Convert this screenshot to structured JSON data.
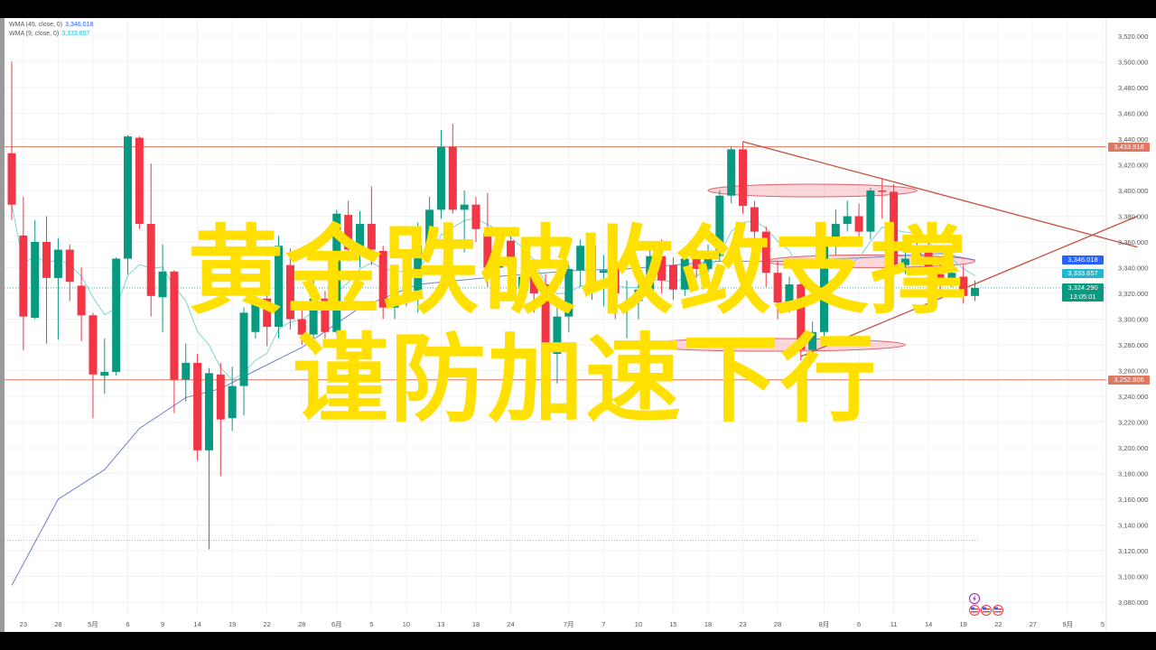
{
  "legend": [
    {
      "label": "WMA (45, close, 0)",
      "value": "3,346.018"
    },
    {
      "label": "WMA (9, close, 0)",
      "value": "3,333.657"
    }
  ],
  "overlay": {
    "line1": "黄金跌破收敛支撑",
    "line2": "谨防加速下行"
  },
  "price_labels": {
    "resistance": "3,433.918",
    "wma45": "3,346.018",
    "wma9": "3,333.657",
    "last_price": "3,324.290",
    "countdown": "13:05:01",
    "support": "3,252.806"
  },
  "colors": {
    "up": "#089981",
    "down": "#f23645",
    "wma45": "#6f7fd8",
    "wma9": "#7fd6cf",
    "level_line": "#e0775f",
    "trend_line": "#c8503c",
    "overlay_text": "#ffe000",
    "wma45_label": "#2962ff",
    "wma9_label": "#22b8cf"
  },
  "events": {
    "icons": [
      "lightning-icon",
      "us-flag-icon",
      "us-flag-icon",
      "us-flag-icon"
    ]
  },
  "chart_data": {
    "type": "candlestick",
    "ylim": [
      3070,
      3530
    ],
    "grid": true,
    "y_ticks": [
      3080,
      3100,
      3120,
      3140,
      3160,
      3180,
      3200,
      3220,
      3240,
      3260,
      3280,
      3300,
      3320,
      3340,
      3360,
      3380,
      3400,
      3420,
      3440,
      3460,
      3480,
      3500,
      3520
    ],
    "y_tick_labels": [
      "3,080.000",
      "3,100.000",
      "3,120.000",
      "3,140.000",
      "3,160.000",
      "3,180.000",
      "3,200.000",
      "3,220.000",
      "3,240.000",
      "3,260.000",
      "3,280.000",
      "3,300.000",
      "3,320.000",
      "3,340.000",
      "3,360.000",
      "3,380.000",
      "3,400.000",
      "3,420.000",
      "3,440.000",
      "3,460.000",
      "3,480.000",
      "3,500.000",
      "3,520.000"
    ],
    "x_ticks": [
      {
        "label": "23",
        "index": 1
      },
      {
        "label": "28",
        "index": 4
      },
      {
        "label": "5月",
        "index": 7
      },
      {
        "label": "6",
        "index": 10
      },
      {
        "label": "9",
        "index": 13
      },
      {
        "label": "14",
        "index": 16
      },
      {
        "label": "19",
        "index": 19
      },
      {
        "label": "22",
        "index": 22
      },
      {
        "label": "28",
        "index": 25
      },
      {
        "label": "6月",
        "index": 28
      },
      {
        "label": "5",
        "index": 31
      },
      {
        "label": "10",
        "index": 34
      },
      {
        "label": "13",
        "index": 37
      },
      {
        "label": "18",
        "index": 40
      },
      {
        "label": "24",
        "index": 43
      },
      {
        "label": "7月",
        "index": 48
      },
      {
        "label": "7",
        "index": 51
      },
      {
        "label": "10",
        "index": 54
      },
      {
        "label": "15",
        "index": 57
      },
      {
        "label": "18",
        "index": 60
      },
      {
        "label": "23",
        "index": 63
      },
      {
        "label": "28",
        "index": 66
      },
      {
        "label": "8月",
        "index": 70
      },
      {
        "label": "6",
        "index": 73
      },
      {
        "label": "11",
        "index": 76
      },
      {
        "label": "14",
        "index": 79
      },
      {
        "label": "19",
        "index": 82
      },
      {
        "label": "22",
        "index": 85
      },
      {
        "label": "27",
        "index": 88
      },
      {
        "label": "9月",
        "index": 91
      },
      {
        "label": "5",
        "index": 94
      }
    ],
    "ohlc": [
      [
        3429,
        3500,
        3377,
        3389
      ],
      [
        3365,
        3395,
        3276,
        3302
      ],
      [
        3301,
        3377,
        3300,
        3360
      ],
      [
        3360,
        3380,
        3281,
        3332
      ],
      [
        3332,
        3363,
        3284,
        3354
      ],
      [
        3354,
        3358,
        3314,
        3329
      ],
      [
        3326,
        3340,
        3283,
        3303
      ],
      [
        3303,
        3305,
        3223,
        3257
      ],
      [
        3256,
        3285,
        3242,
        3259
      ],
      [
        3259,
        3348,
        3256,
        3347
      ],
      [
        3347,
        3443,
        3335,
        3442
      ],
      [
        3441,
        3442,
        3370,
        3374
      ],
      [
        3374,
        3421,
        3302,
        3318
      ],
      [
        3317,
        3358,
        3290,
        3337
      ],
      [
        3337,
        3338,
        3227,
        3253
      ],
      [
        3253,
        3281,
        3236,
        3266
      ],
      [
        3266,
        3273,
        3190,
        3198
      ],
      [
        3198,
        3262,
        3121,
        3258
      ],
      [
        3257,
        3266,
        3178,
        3222
      ],
      [
        3223,
        3263,
        3213,
        3248
      ],
      [
        3248,
        3309,
        3225,
        3305
      ],
      [
        3290,
        3318,
        3285,
        3314
      ],
      [
        3316,
        3322,
        3279,
        3294
      ],
      [
        3294,
        3365,
        3285,
        3357
      ],
      [
        3342,
        3355,
        3292,
        3300
      ],
      [
        3300,
        3310,
        3280,
        3288
      ],
      [
        3288,
        3335,
        3282,
        3316
      ],
      [
        3316,
        3322,
        3285,
        3290
      ],
      [
        3290,
        3385,
        3288,
        3382
      ],
      [
        3381,
        3392,
        3345,
        3354
      ],
      [
        3354,
        3384,
        3340,
        3374
      ],
      [
        3374,
        3403,
        3342,
        3354
      ],
      [
        3353,
        3357,
        3300,
        3309
      ],
      [
        3309,
        3330,
        3300,
        3325
      ],
      [
        3325,
        3330,
        3310,
        3323
      ],
      [
        3322,
        3375,
        3305,
        3357
      ],
      [
        3357,
        3395,
        3350,
        3385
      ],
      [
        3385,
        3447,
        3378,
        3434
      ],
      [
        3434,
        3452,
        3382,
        3385
      ],
      [
        3385,
        3400,
        3352,
        3389
      ],
      [
        3389,
        3395,
        3360,
        3370
      ],
      [
        3367,
        3398,
        3325,
        3340
      ],
      [
        3340,
        3360,
        3320,
        3345
      ],
      [
        3361,
        3368,
        3330,
        3343
      ],
      [
        3324,
        3345,
        3310,
        3333
      ],
      [
        3333,
        3340,
        3305,
        3320
      ],
      [
        3327,
        3335,
        3255,
        3273
      ],
      [
        3273,
        3315,
        3250,
        3302
      ],
      [
        3302,
        3342,
        3290,
        3339
      ],
      [
        3338,
        3362,
        3325,
        3357
      ],
      [
        3357,
        3360,
        3315,
        3325
      ],
      [
        3336,
        3350,
        3310,
        3338
      ],
      [
        3340,
        3350,
        3300,
        3320
      ],
      [
        3308,
        3330,
        3285,
        3312
      ],
      [
        3314,
        3333,
        3300,
        3323
      ],
      [
        3323,
        3355,
        3318,
        3349
      ],
      [
        3349,
        3362,
        3320,
        3330
      ],
      [
        3342,
        3348,
        3315,
        3323
      ],
      [
        3323,
        3352,
        3318,
        3347
      ],
      [
        3347,
        3354,
        3332,
        3339
      ],
      [
        3339,
        3358,
        3334,
        3349
      ],
      [
        3349,
        3400,
        3345,
        3396
      ],
      [
        3396,
        3434,
        3390,
        3432
      ],
      [
        3432,
        3438,
        3382,
        3388
      ],
      [
        3387,
        3392,
        3360,
        3368
      ],
      [
        3368,
        3372,
        3325,
        3336
      ],
      [
        3336,
        3345,
        3300,
        3313
      ],
      [
        3313,
        3333,
        3305,
        3327
      ],
      [
        3327,
        3332,
        3268,
        3276
      ],
      [
        3276,
        3298,
        3270,
        3290
      ],
      [
        3290,
        3366,
        3285,
        3362
      ],
      [
        3362,
        3385,
        3350,
        3374
      ],
      [
        3374,
        3392,
        3368,
        3380
      ],
      [
        3380,
        3390,
        3360,
        3368
      ],
      [
        3368,
        3402,
        3362,
        3400
      ],
      [
        3400,
        3409,
        3378,
        3399
      ],
      [
        3399,
        3405,
        3338,
        3342
      ],
      [
        3342,
        3360,
        3335,
        3347
      ],
      [
        3350,
        3365,
        3345,
        3356
      ],
      [
        3356,
        3375,
        3330,
        3335
      ],
      [
        3335,
        3345,
        3318,
        3330
      ],
      [
        3330,
        3345,
        3325,
        3336
      ],
      [
        3333,
        3342,
        3312,
        3318
      ],
      [
        3318,
        3330,
        3314,
        3324.29
      ]
    ],
    "wma45_points": [
      [
        0,
        3093
      ],
      [
        4,
        3160
      ],
      [
        8,
        3183
      ],
      [
        11,
        3215
      ],
      [
        15,
        3239
      ],
      [
        18,
        3246
      ],
      [
        21,
        3260
      ],
      [
        25,
        3278
      ],
      [
        30,
        3309
      ],
      [
        35,
        3327
      ],
      [
        43,
        3334
      ],
      [
        49,
        3338
      ],
      [
        53,
        3339
      ],
      [
        61,
        3345
      ],
      [
        67,
        3345
      ],
      [
        74,
        3348
      ],
      [
        80,
        3351
      ],
      [
        83,
        3346.018
      ]
    ],
    "wma9_period": 9,
    "horizontal_levels": [
      3433.918,
      3252.806
    ],
    "dotted_levels": [
      3324.29,
      3128
    ],
    "trend_lines": [
      {
        "from": [
          63,
          3438
        ],
        "to": [
          97,
          3356
        ]
      },
      {
        "from": [
          68,
          3271
        ],
        "to": [
          97,
          3380
        ]
      }
    ],
    "ellipses": [
      {
        "from_index": 60,
        "to_index": 78,
        "price": 3400
      },
      {
        "from_index": 65,
        "to_index": 83,
        "price": 3345
      },
      {
        "from_index": 54,
        "to_index": 77,
        "price": 3280
      }
    ]
  }
}
